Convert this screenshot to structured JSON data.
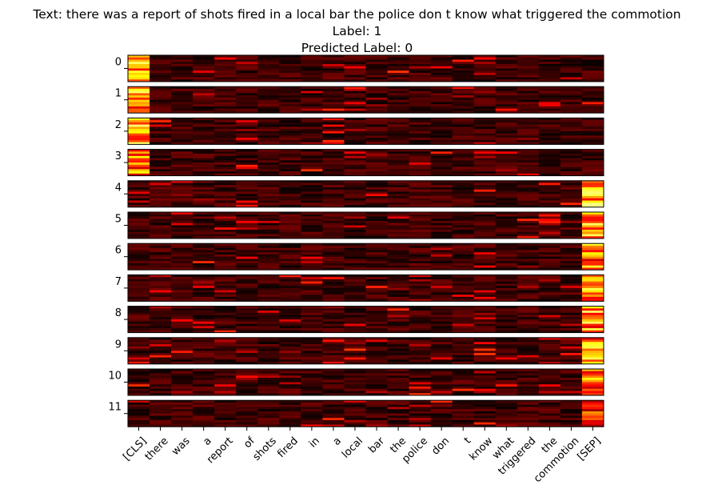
{
  "figure": {
    "title_text": "Text: there was a report of shots fired in a local bar the police don t know what triggered the commotion",
    "title_label": "Label: 1",
    "title_predicted": "Predicted Label: 0"
  },
  "chart_data": {
    "type": "heatmap",
    "colormap": "hot",
    "layers": [
      "0",
      "1",
      "2",
      "3",
      "4",
      "5",
      "6",
      "7",
      "8",
      "9",
      "10",
      "11"
    ],
    "tokens": [
      "[CLS]",
      "there",
      "was",
      "a",
      "report",
      "of",
      "shots",
      "fired",
      "in",
      "a",
      "local",
      "bar",
      "the",
      "police",
      "don",
      "t",
      "know",
      "what",
      "triggered",
      "the",
      "commotion",
      "[SEP]"
    ],
    "rows_per_layer": 12,
    "heads_note": "",
    "highlights": [
      {
        "layer": 0,
        "token": 0,
        "weight": 0.85
      },
      {
        "layer": 1,
        "token": 0,
        "weight": 0.9
      },
      {
        "layer": 2,
        "token": 0,
        "weight": 0.95
      },
      {
        "layer": 3,
        "token": 0,
        "weight": 0.8
      },
      {
        "layer": 4,
        "token": 21,
        "weight": 0.9
      },
      {
        "layer": 5,
        "token": 21,
        "weight": 0.85
      },
      {
        "layer": 6,
        "token": 21,
        "weight": 0.8
      },
      {
        "layer": 7,
        "token": 21,
        "weight": 0.9
      },
      {
        "layer": 8,
        "token": 21,
        "weight": 0.9
      },
      {
        "layer": 9,
        "token": 21,
        "weight": 0.85
      },
      {
        "layer": 10,
        "token": 21,
        "weight": 0.8
      },
      {
        "layer": 11,
        "token": 21,
        "weight": 0.6
      }
    ]
  },
  "colors": {
    "low": "#0b0000",
    "mid": "#c81e00",
    "high": "#ffffff"
  }
}
